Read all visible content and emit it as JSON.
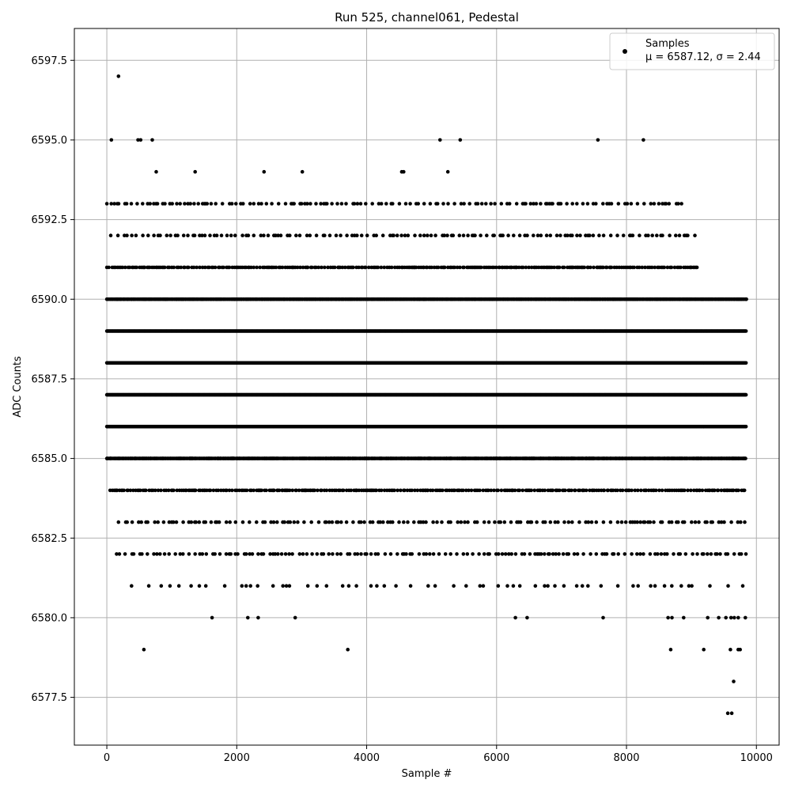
{
  "chart_data": {
    "type": "scatter",
    "title": "Run 525, channel061, Pedestal",
    "xlabel": "Sample #",
    "ylabel": "ADC Counts",
    "xlim": [
      -500,
      10350
    ],
    "ylim": [
      6576.0,
      6598.5
    ],
    "xticks": [
      0,
      2000,
      4000,
      6000,
      8000,
      10000
    ],
    "xtick_labels": [
      "0",
      "2000",
      "4000",
      "6000",
      "8000",
      "10000"
    ],
    "yticks": [
      6577.5,
      6580.0,
      6582.5,
      6585.0,
      6587.5,
      6590.0,
      6592.5,
      6595.0,
      6597.5
    ],
    "ytick_labels": [
      "6577.5",
      "6580.0",
      "6582.5",
      "6585.0",
      "6587.5",
      "6590.0",
      "6592.5",
      "6595.0",
      "6597.5"
    ],
    "grid": true,
    "legend_position": "top-right",
    "series": [
      {
        "name": "Samples",
        "legend_text": [
          "Samples",
          "μ = 6587.12, σ = 2.44"
        ],
        "color": "#000000",
        "marker": "circle",
        "x_range": [
          0,
          9850
        ],
        "levels": [
          {
            "y": 6586,
            "x": [
              0,
              9850
            ],
            "density": "continuous"
          },
          {
            "y": 6587,
            "x": [
              0,
              9850
            ],
            "density": "continuous"
          },
          {
            "y": 6588,
            "x": [
              0,
              9850
            ],
            "density": "continuous"
          },
          {
            "y": 6589,
            "x": [
              0,
              9850
            ],
            "density": "continuous"
          },
          {
            "y": 6585,
            "x": [
              0,
              9850
            ],
            "density": "dense"
          },
          {
            "y": 6590,
            "x": [
              0,
              9850
            ],
            "density": "dense"
          },
          {
            "y": 6584,
            "x": [
              50,
              9850
            ],
            "density": "medium"
          },
          {
            "y": 6591,
            "x": [
              0,
              9100
            ],
            "density": "medium"
          },
          {
            "y": 6583,
            "x": [
              180,
              9850
            ],
            "density": "sparse"
          },
          {
            "y": 6592,
            "x": [
              60,
              9080
            ],
            "density": "sparse"
          },
          {
            "y": 6582,
            "x": [
              150,
              9850
            ],
            "density": "sparse"
          },
          {
            "y": 6593,
            "x": [
              0,
              8850
            ],
            "density": "sparse"
          },
          {
            "y": 6581,
            "x": [
              380,
              9850
            ],
            "density": "rare"
          }
        ],
        "outliers": [
          [
            180,
            6597
          ],
          [
            70,
            6595
          ],
          [
            480,
            6595
          ],
          [
            520,
            6595
          ],
          [
            700,
            6595
          ],
          [
            5130,
            6595
          ],
          [
            5440,
            6595
          ],
          [
            7560,
            6595
          ],
          [
            8260,
            6595
          ],
          [
            760,
            6594
          ],
          [
            1360,
            6594
          ],
          [
            2420,
            6594
          ],
          [
            3010,
            6594
          ],
          [
            4540,
            6594
          ],
          [
            4570,
            6594
          ],
          [
            5250,
            6594
          ],
          [
            1620,
            6580
          ],
          [
            2170,
            6580
          ],
          [
            2330,
            6580
          ],
          [
            2900,
            6580
          ],
          [
            6290,
            6580
          ],
          [
            6470,
            6580
          ],
          [
            7640,
            6580
          ],
          [
            8640,
            6580
          ],
          [
            8700,
            6580
          ],
          [
            8880,
            6580
          ],
          [
            9250,
            6580
          ],
          [
            9420,
            6580
          ],
          [
            9530,
            6580
          ],
          [
            9610,
            6580
          ],
          [
            9660,
            6580
          ],
          [
            9720,
            6580
          ],
          [
            9830,
            6580
          ],
          [
            570,
            6579
          ],
          [
            3710,
            6579
          ],
          [
            8680,
            6579
          ],
          [
            9190,
            6579
          ],
          [
            9600,
            6579
          ],
          [
            9720,
            6579
          ],
          [
            9750,
            6579
          ],
          [
            9650,
            6578
          ],
          [
            9560,
            6577
          ],
          [
            9620,
            6577
          ]
        ]
      }
    ]
  }
}
